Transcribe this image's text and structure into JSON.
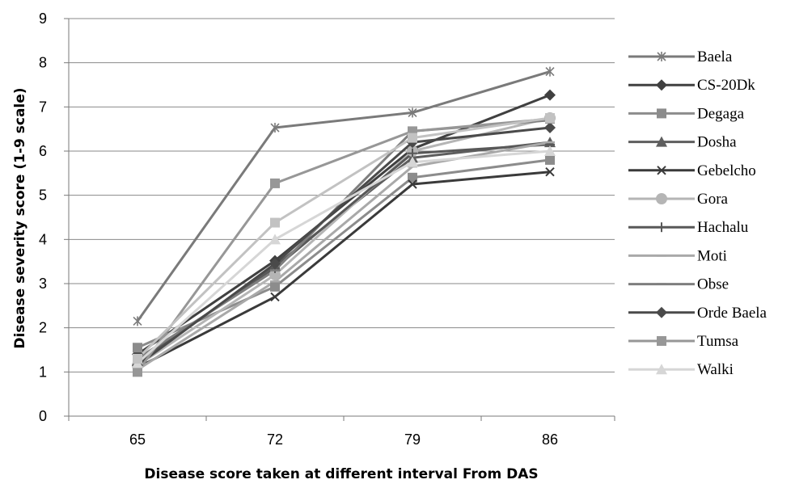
{
  "chart_data": {
    "type": "line",
    "title": "",
    "xlabel": "Disease score taken at different interval From DAS",
    "ylabel": "Disease severity score (1-9 scale)",
    "categories": [
      "65",
      "72",
      "79",
      "86"
    ],
    "ylim": [
      0,
      9
    ],
    "yticks": [
      "0",
      "1",
      "2",
      "3",
      "4",
      "5",
      "6",
      "7",
      "8",
      "9"
    ],
    "grid": true,
    "legend_position": "right",
    "series": [
      {
        "name": "Baela",
        "values": [
          2.15,
          6.53,
          6.87,
          7.8
        ],
        "color": "#7a7a7a",
        "marker": "star"
      },
      {
        "name": "CS-20Dk",
        "values": [
          1.4,
          3.52,
          6.05,
          7.27
        ],
        "color": "#404040",
        "marker": "diamond"
      },
      {
        "name": "Degaga",
        "values": [
          1.55,
          2.93,
          5.4,
          5.8
        ],
        "color": "#8c8c8c",
        "marker": "square"
      },
      {
        "name": "Dosha",
        "values": [
          1.2,
          3.4,
          5.85,
          6.2
        ],
        "color": "#5e5e5e",
        "marker": "triangle"
      },
      {
        "name": "Gebelcho",
        "values": [
          1.1,
          2.7,
          5.25,
          5.53
        ],
        "color": "#3a3a3a",
        "marker": "x"
      },
      {
        "name": "Gora",
        "values": [
          1.15,
          3.2,
          6.0,
          6.75
        ],
        "color": "#b5b5b5",
        "marker": "circle"
      },
      {
        "name": "Hachalu",
        "values": [
          1.25,
          3.35,
          5.95,
          6.15
        ],
        "color": "#585858",
        "marker": "plus"
      },
      {
        "name": "Moti",
        "values": [
          1.05,
          3.05,
          5.65,
          6.2
        ],
        "color": "#a9a9a9",
        "marker": "dash"
      },
      {
        "name": "Obse",
        "values": [
          1.3,
          3.3,
          6.45,
          6.7
        ],
        "color": "#7e7e7e",
        "marker": "dash"
      },
      {
        "name": "Orde Baela",
        "values": [
          1.15,
          3.45,
          6.2,
          6.53
        ],
        "color": "#4a4a4a",
        "marker": "diamond"
      },
      {
        "name": "Tumsa",
        "values": [
          1.0,
          5.27,
          6.45,
          6.73
        ],
        "color": "#979797",
        "marker": "square"
      },
      {
        "name": "Walki",
        "values": [
          1.2,
          4.0,
          5.75,
          6.0
        ],
        "color": "#d6d6d6",
        "marker": "triangle"
      },
      {
        "name": "",
        "values": [
          1.3,
          4.38,
          6.3,
          6.75
        ],
        "color": "#c2c2c2",
        "marker": "square"
      }
    ]
  }
}
